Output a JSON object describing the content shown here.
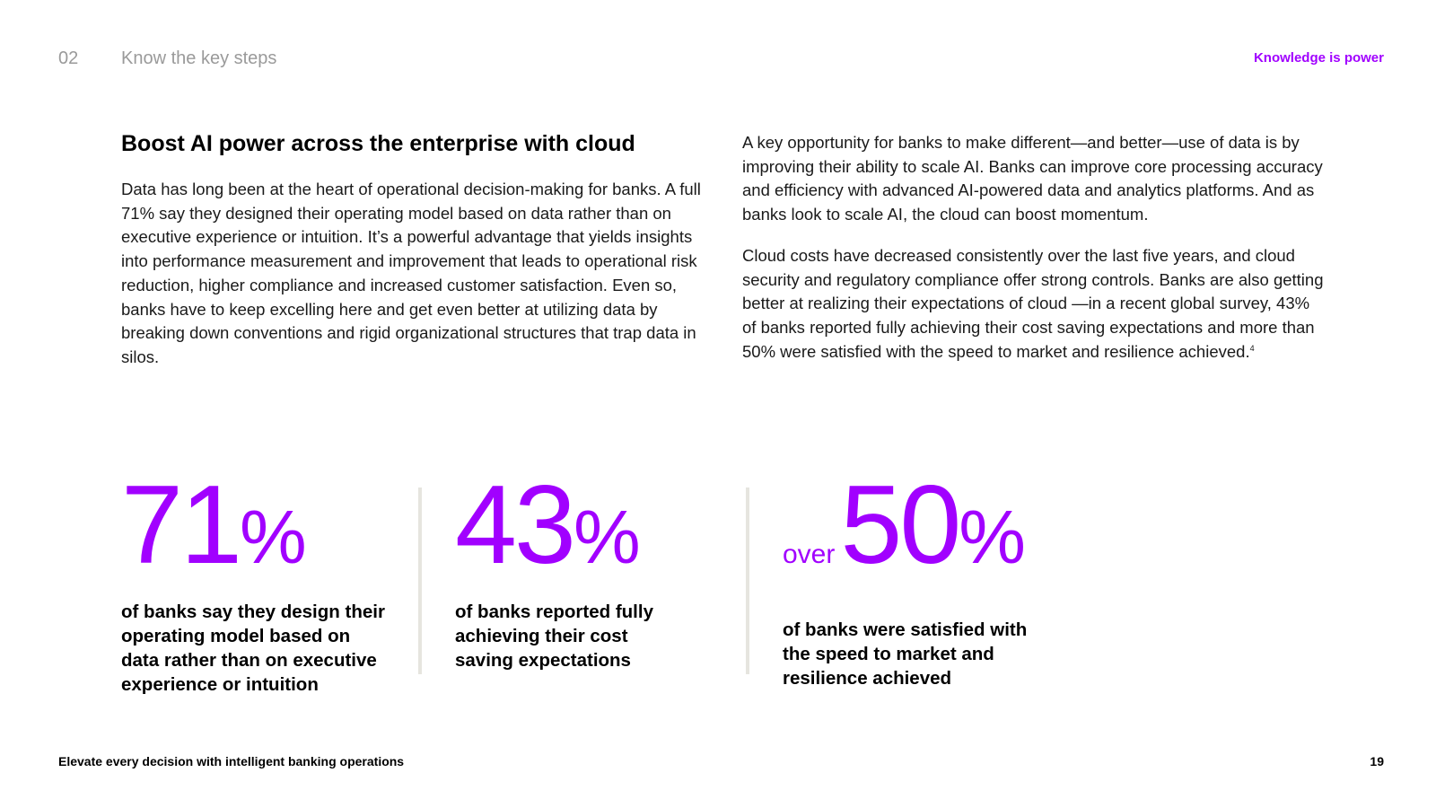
{
  "header": {
    "section_number": "02",
    "section_title": "Know the key steps",
    "tagline": "Knowledge is power"
  },
  "left_column": {
    "heading": "Boost AI power across the enterprise with cloud",
    "paragraph": "Data has long been at the heart of operational decision-making for banks. A full 71% say they designed their operating model based on data rather than on executive experience or intuition. It’s a powerful advantage that yields insights into performance measurement and improvement that leads to operational risk reduction, higher compliance and increased customer satisfaction. Even so, banks have to keep excelling here and get even better at utilizing data by breaking down conventions and rigid organizational structures that trap data in silos."
  },
  "right_column": {
    "paragraph1": "A key opportunity for banks to make different—and better—use of data is by improving their ability to scale AI. Banks can improve core processing accuracy and efficiency with advanced AI-powered data and analytics platforms. And as banks look to scale AI, the cloud can boost momentum.",
    "paragraph2": "Cloud costs have decreased consistently over the last five years, and cloud security and regulatory compliance offer strong controls. Banks are also getting better at realizing their expectations of cloud —in a recent global survey, 43% of banks reported fully achieving their cost saving expectations and more than 50% were satisfied with the speed to market and resilience achieved.",
    "footnote": "4"
  },
  "stats": [
    {
      "prefix": "",
      "value": "71",
      "unit": "%",
      "description": "of banks say they design their operating model based on data rather than on executive experience or intuition"
    },
    {
      "prefix": "",
      "value": "43",
      "unit": "%",
      "description": "of banks reported fully achieving their cost saving expectations"
    },
    {
      "prefix": "over",
      "value": "50",
      "unit": "%",
      "description": "of banks were satisfied with the speed to market and resilience achieved"
    }
  ],
  "footer": {
    "title": "Elevate every decision with intelligent banking operations",
    "page_number": "19"
  },
  "colors": {
    "accent": "#a100ff",
    "divider": "#e6e5df",
    "muted": "#9a9a9a"
  }
}
